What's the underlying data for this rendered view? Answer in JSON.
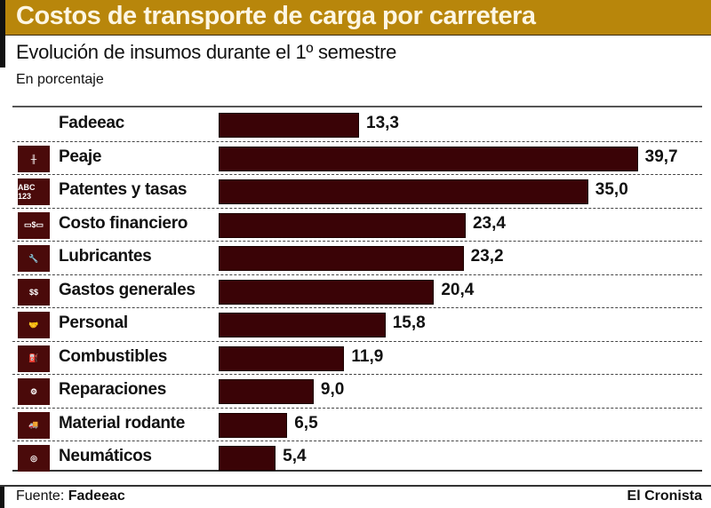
{
  "header": {
    "title": "Costos de transporte de carga por carretera",
    "subtitle": "Evolución de insumos durante el 1º semestre",
    "unit": "En porcentaje"
  },
  "footer": {
    "source_label": "Fuente:",
    "source_name": "Fadeeac",
    "brand": "El Cronista"
  },
  "colors": {
    "title_bar": "#b8860b",
    "bar": "#3a0306",
    "icon_bg": "#4a0a0a"
  },
  "chart_data": {
    "type": "bar",
    "orientation": "horizontal",
    "title": "Costos de transporte de carga por carretera",
    "subtitle": "Evolución de insumos durante el 1º semestre",
    "unit": "En porcentaje",
    "xlim": [
      0,
      40
    ],
    "grid": false,
    "legend": "none",
    "categories": [
      "Fadeeac",
      "Peaje",
      "Patentes y tasas",
      "Costo financiero",
      "Lubricantes",
      "Gastos generales",
      "Personal",
      "Combustibles",
      "Reparaciones",
      "Material rodante",
      "Neumáticos"
    ],
    "values": [
      13.3,
      39.7,
      35.0,
      23.4,
      23.2,
      20.4,
      15.8,
      11.9,
      9.0,
      6.5,
      5.4
    ],
    "value_labels": [
      "13,3",
      "39,7",
      "35,0",
      "23,4",
      "23,2",
      "20,4",
      "15,8",
      "11,9",
      "9,0",
      "6,5",
      "5,4"
    ],
    "icons": [
      "",
      "highway-icon",
      "license-plate-icon",
      "money-bill-icon",
      "wrench-icon",
      "money-stack-icon",
      "handshake-icon",
      "fuel-pump-icon",
      "gears-icon",
      "truck-icon",
      "tire-icon"
    ],
    "icon_glyphs": [
      "",
      "╫",
      "ABC 123",
      "▭$▭",
      "🔧",
      "$$",
      "🤝",
      "⛽",
      "⚙",
      "🚚",
      "◎"
    ]
  }
}
